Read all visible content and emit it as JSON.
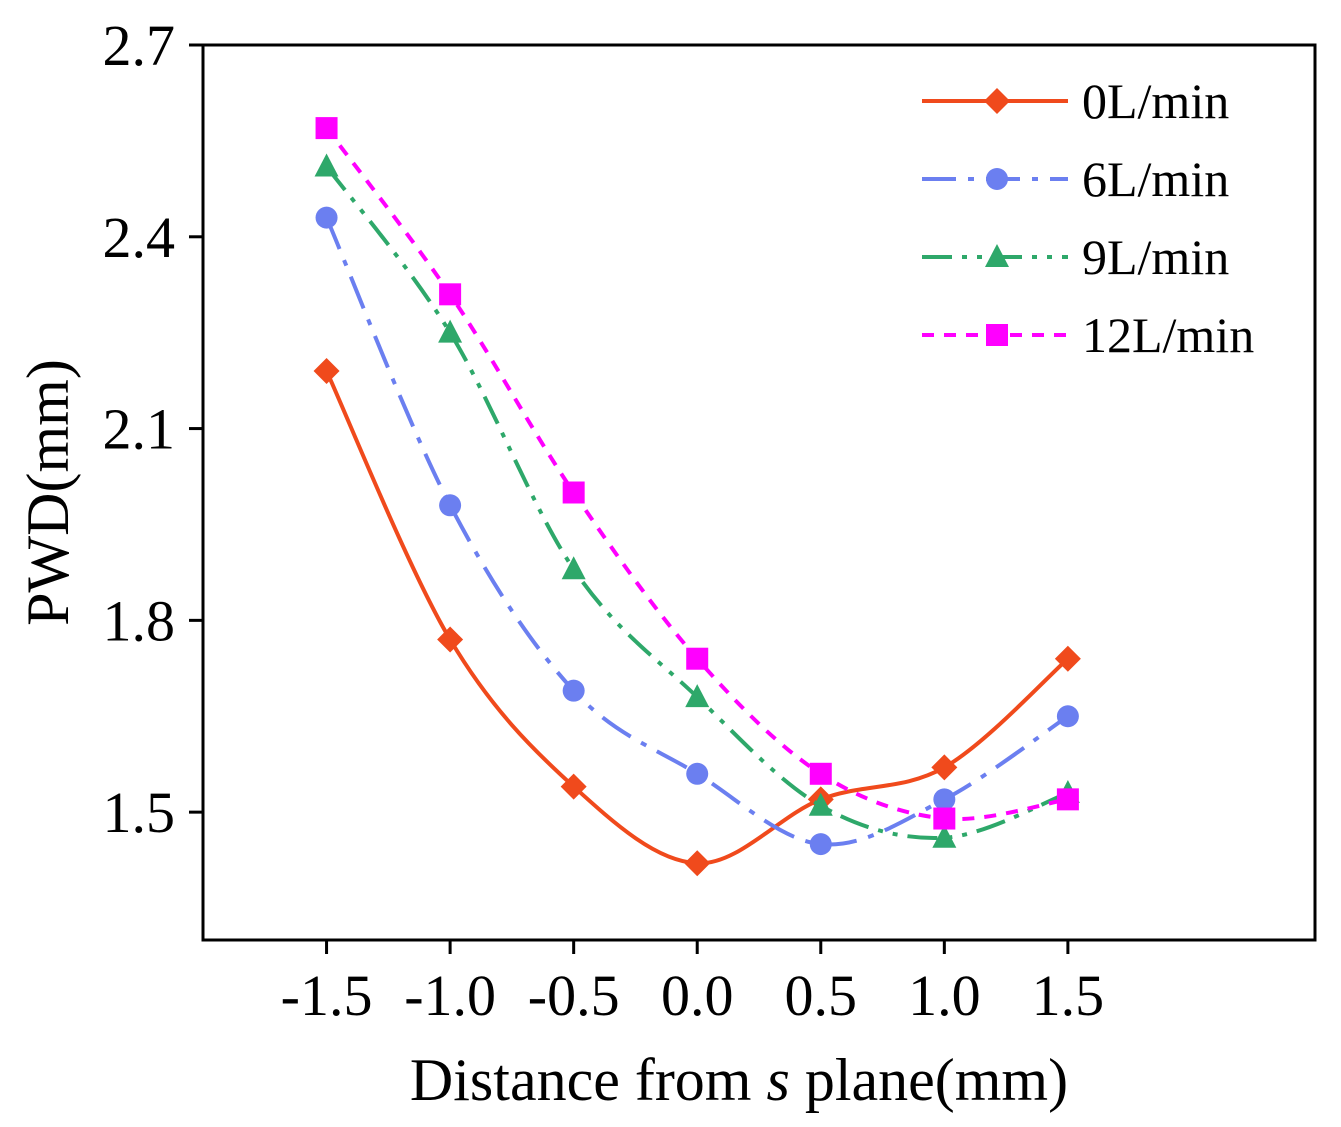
{
  "chart_data": {
    "type": "line",
    "title": "",
    "xlabel_parts": [
      {
        "text": "Distance from ",
        "italic": false
      },
      {
        "text": "s",
        "italic": true
      },
      {
        "text": " plane(mm)",
        "italic": false
      }
    ],
    "ylabel": "PWD(mm)",
    "x": [
      -1.5,
      -1.0,
      -0.5,
      0.0,
      0.5,
      1.0,
      1.5
    ],
    "xlim": [
      -2.0,
      2.5
    ],
    "ylim": [
      1.3,
      2.7
    ],
    "xticks": [
      -1.5,
      -1.0,
      -0.5,
      0.0,
      0.5,
      1.0,
      1.5
    ],
    "xtick_labels": [
      "-1.5",
      "-1.0",
      "-0.5",
      "0.0",
      "0.5",
      "1.0",
      "1.5"
    ],
    "yticks": [
      1.5,
      1.8,
      2.1,
      2.4,
      2.7
    ],
    "ytick_labels": [
      "1.5",
      "1.8",
      "2.1",
      "2.4",
      "2.7"
    ],
    "legend_position": "top-right",
    "series": [
      {
        "name": "0L/min",
        "color": "#F04A1C",
        "marker": "diamond",
        "dash": "solid",
        "values": [
          2.19,
          1.77,
          1.54,
          1.42,
          1.52,
          1.57,
          1.74
        ]
      },
      {
        "name": "6L/min",
        "color": "#6B7FF0",
        "marker": "circle",
        "dash": "dashdot",
        "values": [
          2.43,
          1.98,
          1.69,
          1.56,
          1.45,
          1.52,
          1.65
        ]
      },
      {
        "name": "9L/min",
        "color": "#2EA86A",
        "marker": "triangle",
        "dash": "dashdotdot",
        "values": [
          2.51,
          2.25,
          1.88,
          1.68,
          1.51,
          1.46,
          1.53
        ]
      },
      {
        "name": "12L/min",
        "color": "#FF00FF",
        "marker": "square",
        "dash": "short",
        "values": [
          2.57,
          2.31,
          2.0,
          1.74,
          1.56,
          1.49,
          1.52
        ]
      }
    ]
  }
}
